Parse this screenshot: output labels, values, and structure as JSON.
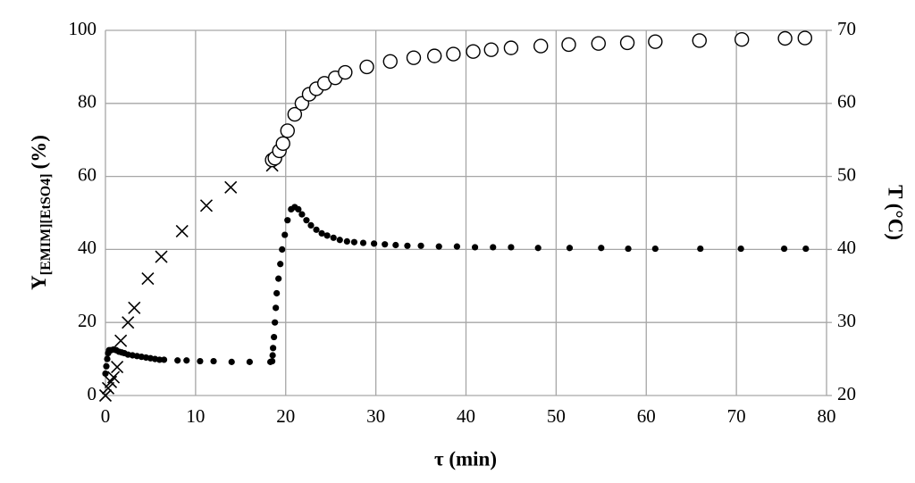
{
  "chart_data": {
    "type": "scatter",
    "xlabel": "τ (min)",
    "ylabel": "Y",
    "ylabel_sub": "[EMIM][EtSO4]",
    "ylabel_unit": "(%)",
    "y2label": "T (°C)",
    "xlim": [
      0,
      80
    ],
    "xticks": [
      0,
      10,
      20,
      30,
      40,
      50,
      60,
      70,
      80
    ],
    "ylim": [
      0,
      100
    ],
    "yticks": [
      0,
      20,
      40,
      60,
      80,
      100
    ],
    "y2lim": [
      20,
      70
    ],
    "y2ticks": [
      20,
      30,
      40,
      50,
      60,
      70
    ],
    "grid": true,
    "series": [
      {
        "marker": "cross",
        "color": "#000000",
        "x": [
          0,
          0.3,
          0.6,
          0.9,
          1.3,
          1.7,
          2.5,
          3.2,
          4.7,
          6.2,
          8.5,
          11.2,
          13.9,
          18.5
        ],
        "values": [
          0,
          2,
          3.7,
          5,
          7.8,
          15,
          20,
          24,
          32,
          38,
          45,
          52,
          57,
          63
        ]
      },
      {
        "marker": "circle-open",
        "color": "#000000",
        "x": [
          18.5,
          18.8,
          19.3,
          19.7,
          20.2,
          21,
          21.8,
          22.6,
          23.4,
          24.3,
          25.5,
          26.6,
          29,
          31.6,
          34.2,
          36.5,
          38.6,
          40.8,
          42.8,
          45,
          48.3,
          51.4,
          54.7,
          57.9,
          61,
          65.9,
          70.6,
          75.4,
          77.6
        ],
        "values": [
          64.5,
          65,
          67,
          69,
          72.5,
          77,
          80,
          82.5,
          84,
          85.5,
          87,
          88.5,
          90,
          91.5,
          92.5,
          93,
          93.5,
          94.2,
          94.7,
          95.2,
          95.7,
          96.1,
          96.4,
          96.6,
          96.9,
          97.2,
          97.5,
          97.8,
          97.9
        ]
      },
      {
        "marker": "dot",
        "color": "#000000",
        "axis": "y2",
        "x": [
          0,
          0.1,
          0.2,
          0.3,
          0.4,
          0.6,
          0.9,
          1.2,
          1.5,
          1.8,
          2.1,
          2.5,
          3,
          3.5,
          4,
          4.5,
          5,
          5.5,
          6,
          6.5,
          8,
          9,
          10.5,
          12,
          14,
          16,
          18.3,
          18.5,
          18.55,
          18.6,
          18.7,
          18.8,
          18.9,
          19,
          19.2,
          19.4,
          19.6,
          19.9,
          20.2,
          20.6,
          21,
          21.4,
          21.8,
          22.3,
          22.8,
          23.4,
          24,
          24.6,
          25.3,
          26,
          26.8,
          27.6,
          28.6,
          29.8,
          31,
          32.2,
          33.5,
          35,
          37,
          39,
          41,
          43,
          45,
          48,
          51.5,
          55,
          58,
          61,
          66,
          70.5,
          75.3,
          77.7
        ],
        "values": [
          23,
          24,
          25,
          25.8,
          26.2,
          26.2,
          26.3,
          26.2,
          26,
          25.9,
          25.8,
          25.6,
          25.5,
          25.4,
          25.3,
          25.2,
          25.1,
          25,
          24.9,
          24.9,
          24.8,
          24.8,
          24.7,
          24.7,
          24.6,
          24.6,
          24.6,
          24.7,
          25.5,
          26.5,
          28,
          30,
          32,
          34,
          36,
          38,
          40,
          42,
          44,
          45.5,
          45.8,
          45.5,
          44.8,
          44,
          43.3,
          42.7,
          42.2,
          41.9,
          41.6,
          41.3,
          41.1,
          41,
          40.9,
          40.8,
          40.7,
          40.6,
          40.5,
          40.5,
          40.4,
          40.4,
          40.3,
          40.3,
          40.3,
          40.2,
          40.2,
          40.2,
          40.1,
          40.1,
          40.1,
          40.1,
          40.1,
          40.1
        ]
      }
    ]
  }
}
